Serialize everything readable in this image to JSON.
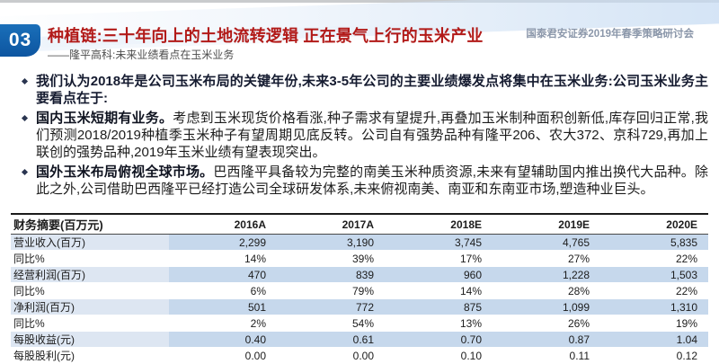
{
  "colors": {
    "accent_blue": "#0d55a0",
    "title_red": "#b21a18",
    "conference_text": "#8b97aa",
    "row_highlight_label": "#dde6f2",
    "row_highlight_value": "#c6d8ec",
    "top_strip_gray": "#c9cbcd"
  },
  "header": {
    "section_number": "03",
    "title": "种植链:三十年向上的土地流转逻辑 正在景气上行的玉米产业",
    "conference": "国泰君安证券2019年春季策略研讨会",
    "subtitle": "——隆平高科:未来业绩看点在玉米业务"
  },
  "bullets": [
    {
      "lead": "",
      "text": "我们认为2018年是公司玉米布局的关键年份,未来3-5年公司的主要业绩爆发点将集中在玉米业务:公司玉米业务主要看点在于:"
    },
    {
      "lead": "国内玉米短期有业务。",
      "text": "考虑到玉米现货价格看涨,种子需求有望提升,再叠加玉米制种面积创新低,库存回归正常,我们预测2018/2019种植季玉米种子有望周期见底反转。公司自有强势品种有隆平206、农大372、京科729,再加上联创的强势品种,2019年玉米业绩有望表现突出。"
    },
    {
      "lead": "国外玉米布局俯视全球市场。",
      "text": "巴西隆平具备较为完整的南美玉米种质资源,未来有望辅助国内推出换代大品种。除此之外,公司借助巴西隆平已经打造公司全球研发体系,未来俯视南美、南亚和东南亚市场,塑造种业巨头。"
    }
  ],
  "table": {
    "corner_label": "财务摘要(百万元)",
    "columns": [
      "2016A",
      "2017A",
      "2018E",
      "2019E",
      "2020E"
    ],
    "rows": [
      {
        "label": "营业收入(百万)",
        "values": [
          "2,299",
          "3,190",
          "3,745",
          "4,765",
          "5,835"
        ]
      },
      {
        "label": "同比%",
        "values": [
          "14%",
          "39%",
          "17%",
          "27%",
          "22%"
        ]
      },
      {
        "label": "经营利润(百万)",
        "values": [
          "470",
          "839",
          "960",
          "1,228",
          "1,503"
        ]
      },
      {
        "label": "同比%",
        "values": [
          "6%",
          "79%",
          "14%",
          "28%",
          "22%"
        ]
      },
      {
        "label": "净利润(百万)",
        "values": [
          "501",
          "772",
          "875",
          "1,099",
          "1,310"
        ]
      },
      {
        "label": "同比%",
        "values": [
          "2%",
          "54%",
          "13%",
          "26%",
          "19%"
        ]
      },
      {
        "label": "每股收益(元)",
        "values": [
          "0.40",
          "0.61",
          "0.70",
          "0.87",
          "1.04"
        ]
      },
      {
        "label": "每股股利(元)",
        "values": [
          "0.00",
          "0.00",
          "0.10",
          "0.11",
          "0.12"
        ]
      }
    ]
  }
}
